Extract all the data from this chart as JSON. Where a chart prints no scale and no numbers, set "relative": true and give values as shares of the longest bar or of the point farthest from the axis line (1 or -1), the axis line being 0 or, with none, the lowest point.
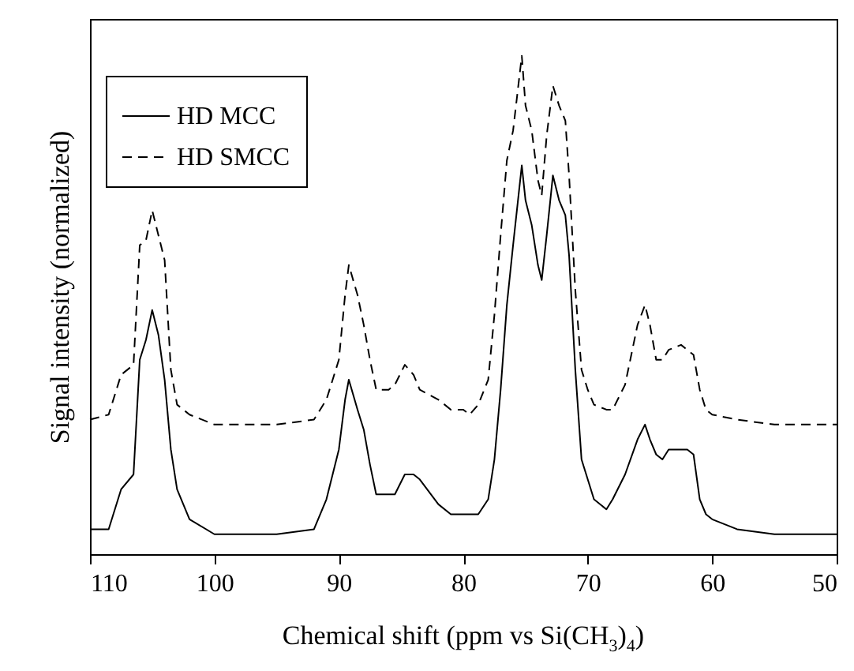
{
  "chart_data": {
    "type": "line",
    "relative": true,
    "xlabel": "Chemical shift (ppm vs Si(CH$_{3}$)$_{4}$)",
    "ylabel": "Signal intensity (normalized)",
    "legend": "top left",
    "xlim": [
      110,
      50
    ],
    "xticks": [
      110,
      100,
      90,
      80,
      70,
      60,
      50
    ],
    "x": [
      110,
      108.5,
      107.5,
      106.5,
      106,
      105.5,
      105,
      104.5,
      104,
      103.5,
      103,
      102,
      100,
      95,
      92,
      91,
      90,
      89.5,
      89.2,
      88.5,
      88,
      87.5,
      87,
      86,
      85.5,
      84.7,
      84,
      83.5,
      82,
      81,
      80,
      79.5,
      78.8,
      78,
      77.5,
      77,
      76.5,
      76,
      75.3,
      75,
      74.5,
      74,
      73.7,
      73.3,
      72.8,
      72.3,
      71.8,
      71.5,
      71,
      70.5,
      70,
      69.5,
      68.5,
      68,
      67,
      66,
      65.4,
      65,
      64.5,
      64,
      63.5,
      62.5,
      62,
      61.5,
      61,
      60.5,
      60,
      58,
      55,
      50
    ],
    "series": [
      {
        "name": "HD MCC",
        "color": "#000000",
        "line_style": "solid",
        "values": [
          0.05,
          0.05,
          0.13,
          0.16,
          0.39,
          0.43,
          0.49,
          0.44,
          0.35,
          0.21,
          0.13,
          0.07,
          0.04,
          0.04,
          0.05,
          0.11,
          0.21,
          0.31,
          0.35,
          0.29,
          0.25,
          0.18,
          0.12,
          0.12,
          0.12,
          0.16,
          0.16,
          0.15,
          0.1,
          0.08,
          0.08,
          0.08,
          0.08,
          0.11,
          0.19,
          0.33,
          0.5,
          0.62,
          0.78,
          0.71,
          0.66,
          0.58,
          0.55,
          0.64,
          0.76,
          0.71,
          0.68,
          0.6,
          0.37,
          0.19,
          0.15,
          0.11,
          0.09,
          0.11,
          0.16,
          0.23,
          0.26,
          0.23,
          0.2,
          0.19,
          0.21,
          0.21,
          0.21,
          0.2,
          0.11,
          0.08,
          0.07,
          0.05,
          0.04,
          0.04
        ]
      },
      {
        "name": "HD SMCC",
        "color": "#000000",
        "line_style": "dashed",
        "values": [
          0.27,
          0.28,
          0.36,
          0.38,
          0.62,
          0.63,
          0.69,
          0.64,
          0.59,
          0.37,
          0.3,
          0.28,
          0.26,
          0.26,
          0.27,
          0.31,
          0.39,
          0.52,
          0.58,
          0.52,
          0.46,
          0.39,
          0.33,
          0.33,
          0.34,
          0.38,
          0.36,
          0.33,
          0.31,
          0.29,
          0.29,
          0.28,
          0.3,
          0.35,
          0.48,
          0.64,
          0.79,
          0.85,
          1,
          0.9,
          0.85,
          0.75,
          0.72,
          0.84,
          0.94,
          0.9,
          0.87,
          0.76,
          0.53,
          0.37,
          0.33,
          0.3,
          0.29,
          0.29,
          0.34,
          0.46,
          0.5,
          0.46,
          0.39,
          0.39,
          0.41,
          0.42,
          0.41,
          0.4,
          0.33,
          0.29,
          0.28,
          0.27,
          0.26,
          0.26
        ]
      }
    ]
  }
}
